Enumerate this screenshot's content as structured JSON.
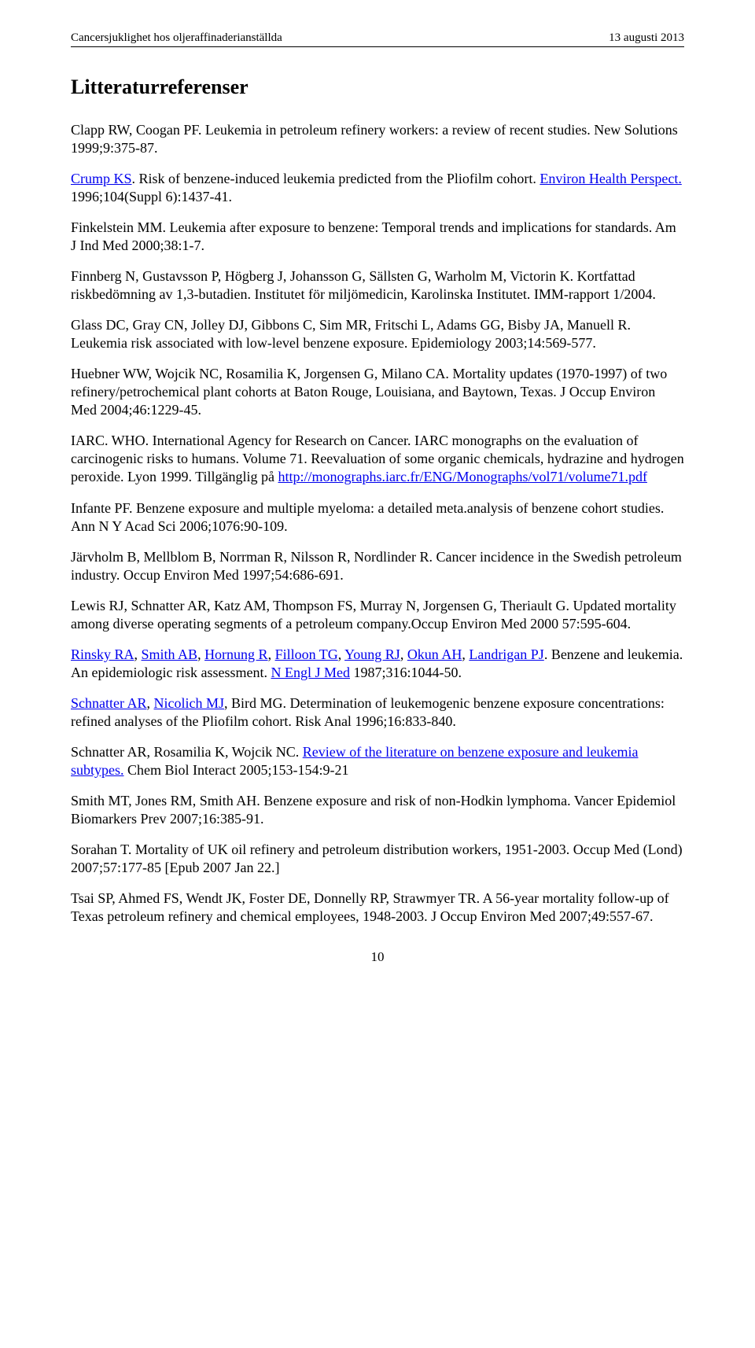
{
  "header": {
    "left": "Cancersjuklighet hos oljeraffinaderianställda",
    "right": "13 augusti 2013"
  },
  "title": "Litteraturreferenser",
  "refs": [
    {
      "segments": [
        {
          "text": "Clapp RW, Coogan PF. Leukemia in petroleum refinery workers: a review of recent studies. New Solutions 1999;9:375-87."
        }
      ]
    },
    {
      "segments": [
        {
          "text": "Crump KS",
          "link": true
        },
        {
          "text": ". Risk of benzene-induced leukemia predicted from the Pliofilm cohort. "
        },
        {
          "text": "Environ Health Perspect.",
          "link": true
        },
        {
          "text": " 1996;104(Suppl 6):1437-41."
        }
      ]
    },
    {
      "segments": [
        {
          "text": "Finkelstein MM. Leukemia after exposure to benzene: Temporal trends and implications for standards. Am J Ind Med 2000;38:1-7."
        }
      ]
    },
    {
      "segments": [
        {
          "text": "Finnberg N, Gustavsson P, Högberg J, Johansson G, Sällsten G, Warholm M, Victorin K. Kortfattad riskbedömning av 1,3-butadien. Institutet för miljömedicin, Karolinska Institutet. IMM-rapport 1/2004."
        }
      ]
    },
    {
      "segments": [
        {
          "text": "Glass DC, Gray CN, Jolley DJ, Gibbons C, Sim MR, Fritschi L, Adams GG, Bisby JA, Manuell R. Leukemia risk associated with low-level benzene exposure. Epidemiology 2003;14:569-577."
        }
      ]
    },
    {
      "segments": [
        {
          "text": "Huebner WW, Wojcik NC, Rosamilia K, Jorgensen G, Milano CA. Mortality updates (1970-1997) of two refinery/petrochemical plant cohorts at Baton Rouge, Louisiana, and Baytown, Texas. J Occup Environ Med 2004;46:1229-45."
        }
      ]
    },
    {
      "segments": [
        {
          "text": "IARC. WHO. International Agency for Research on Cancer. IARC monographs on the evaluation of carcinogenic risks to humans. Volume 71. Reevaluation of some organic chemicals, hydrazine and hydrogen peroxide. Lyon 1999. Tillgänglig på "
        },
        {
          "text": "http://monographs.iarc.fr/ENG/Monographs/vol71/volume71.pdf",
          "link": true
        }
      ]
    },
    {
      "segments": [
        {
          "text": "Infante PF. Benzene exposure and multiple myeloma: a detailed meta.analysis of benzene cohort studies. Ann N Y Acad Sci 2006;1076:90-109."
        }
      ]
    },
    {
      "segments": [
        {
          "text": "Järvholm B, Mellblom B, Norrman R, Nilsson R, Nordlinder R. Cancer incidence in the Swedish petroleum industry. Occup Environ Med 1997;54:686-691."
        }
      ]
    },
    {
      "segments": [
        {
          "text": "Lewis RJ, Schnatter AR, Katz AM, Thompson FS, Murray N, Jorgensen G, Theriault G. Updated mortality among diverse operating segments of a petroleum company.Occup Environ Med 2000 57:595-604."
        }
      ]
    },
    {
      "segments": [
        {
          "text": "Rinsky RA",
          "link": true
        },
        {
          "text": ", "
        },
        {
          "text": "Smith AB",
          "link": true
        },
        {
          "text": ", "
        },
        {
          "text": "Hornung R",
          "link": true
        },
        {
          "text": ", "
        },
        {
          "text": "Filloon TG",
          "link": true
        },
        {
          "text": ", "
        },
        {
          "text": "Young RJ",
          "link": true
        },
        {
          "text": ", "
        },
        {
          "text": "Okun AH",
          "link": true
        },
        {
          "text": ", "
        },
        {
          "text": "Landrigan PJ",
          "link": true
        },
        {
          "text": ". Benzene and leukemia. An epidemiologic risk assessment. "
        },
        {
          "text": "N Engl J Med",
          "link": true
        },
        {
          "text": " 1987;316:1044-50."
        }
      ]
    },
    {
      "segments": [
        {
          "text": "Schnatter AR",
          "link": true
        },
        {
          "text": ", "
        },
        {
          "text": "Nicolich MJ",
          "link": true
        },
        {
          "text": ", Bird MG. Determination of leukemogenic benzene exposure concentrations: refined analyses of the Pliofilm cohort. Risk Anal 1996;16:833-840."
        }
      ]
    },
    {
      "segments": [
        {
          "text": "Schnatter AR, Rosamilia K, Wojcik NC. "
        },
        {
          "text": "Review of the literature on benzene exposure and leukemia subtypes.",
          "link": true
        },
        {
          "text": " Chem Biol Interact 2005;153-154:9-21"
        }
      ]
    },
    {
      "segments": [
        {
          "text": "Smith MT, Jones RM, Smith AH. Benzene exposure and risk of non-Hodkin lymphoma. Vancer Epidemiol Biomarkers Prev 2007;16:385-91."
        }
      ]
    },
    {
      "segments": [
        {
          "text": "Sorahan T. Mortality of UK oil refinery and petroleum distribution workers, 1951-2003. Occup Med (Lond) 2007;57:177-85 [Epub 2007 Jan 22.]"
        }
      ]
    },
    {
      "segments": [
        {
          "text": "Tsai SP, Ahmed FS, Wendt JK, Foster DE, Donnelly RP, Strawmyer TR. A 56-year mortality follow-up of Texas petroleum refinery and chemical employees, 1948-2003. J Occup Environ Med 2007;49:557-67."
        }
      ]
    }
  ],
  "page_number": "10"
}
